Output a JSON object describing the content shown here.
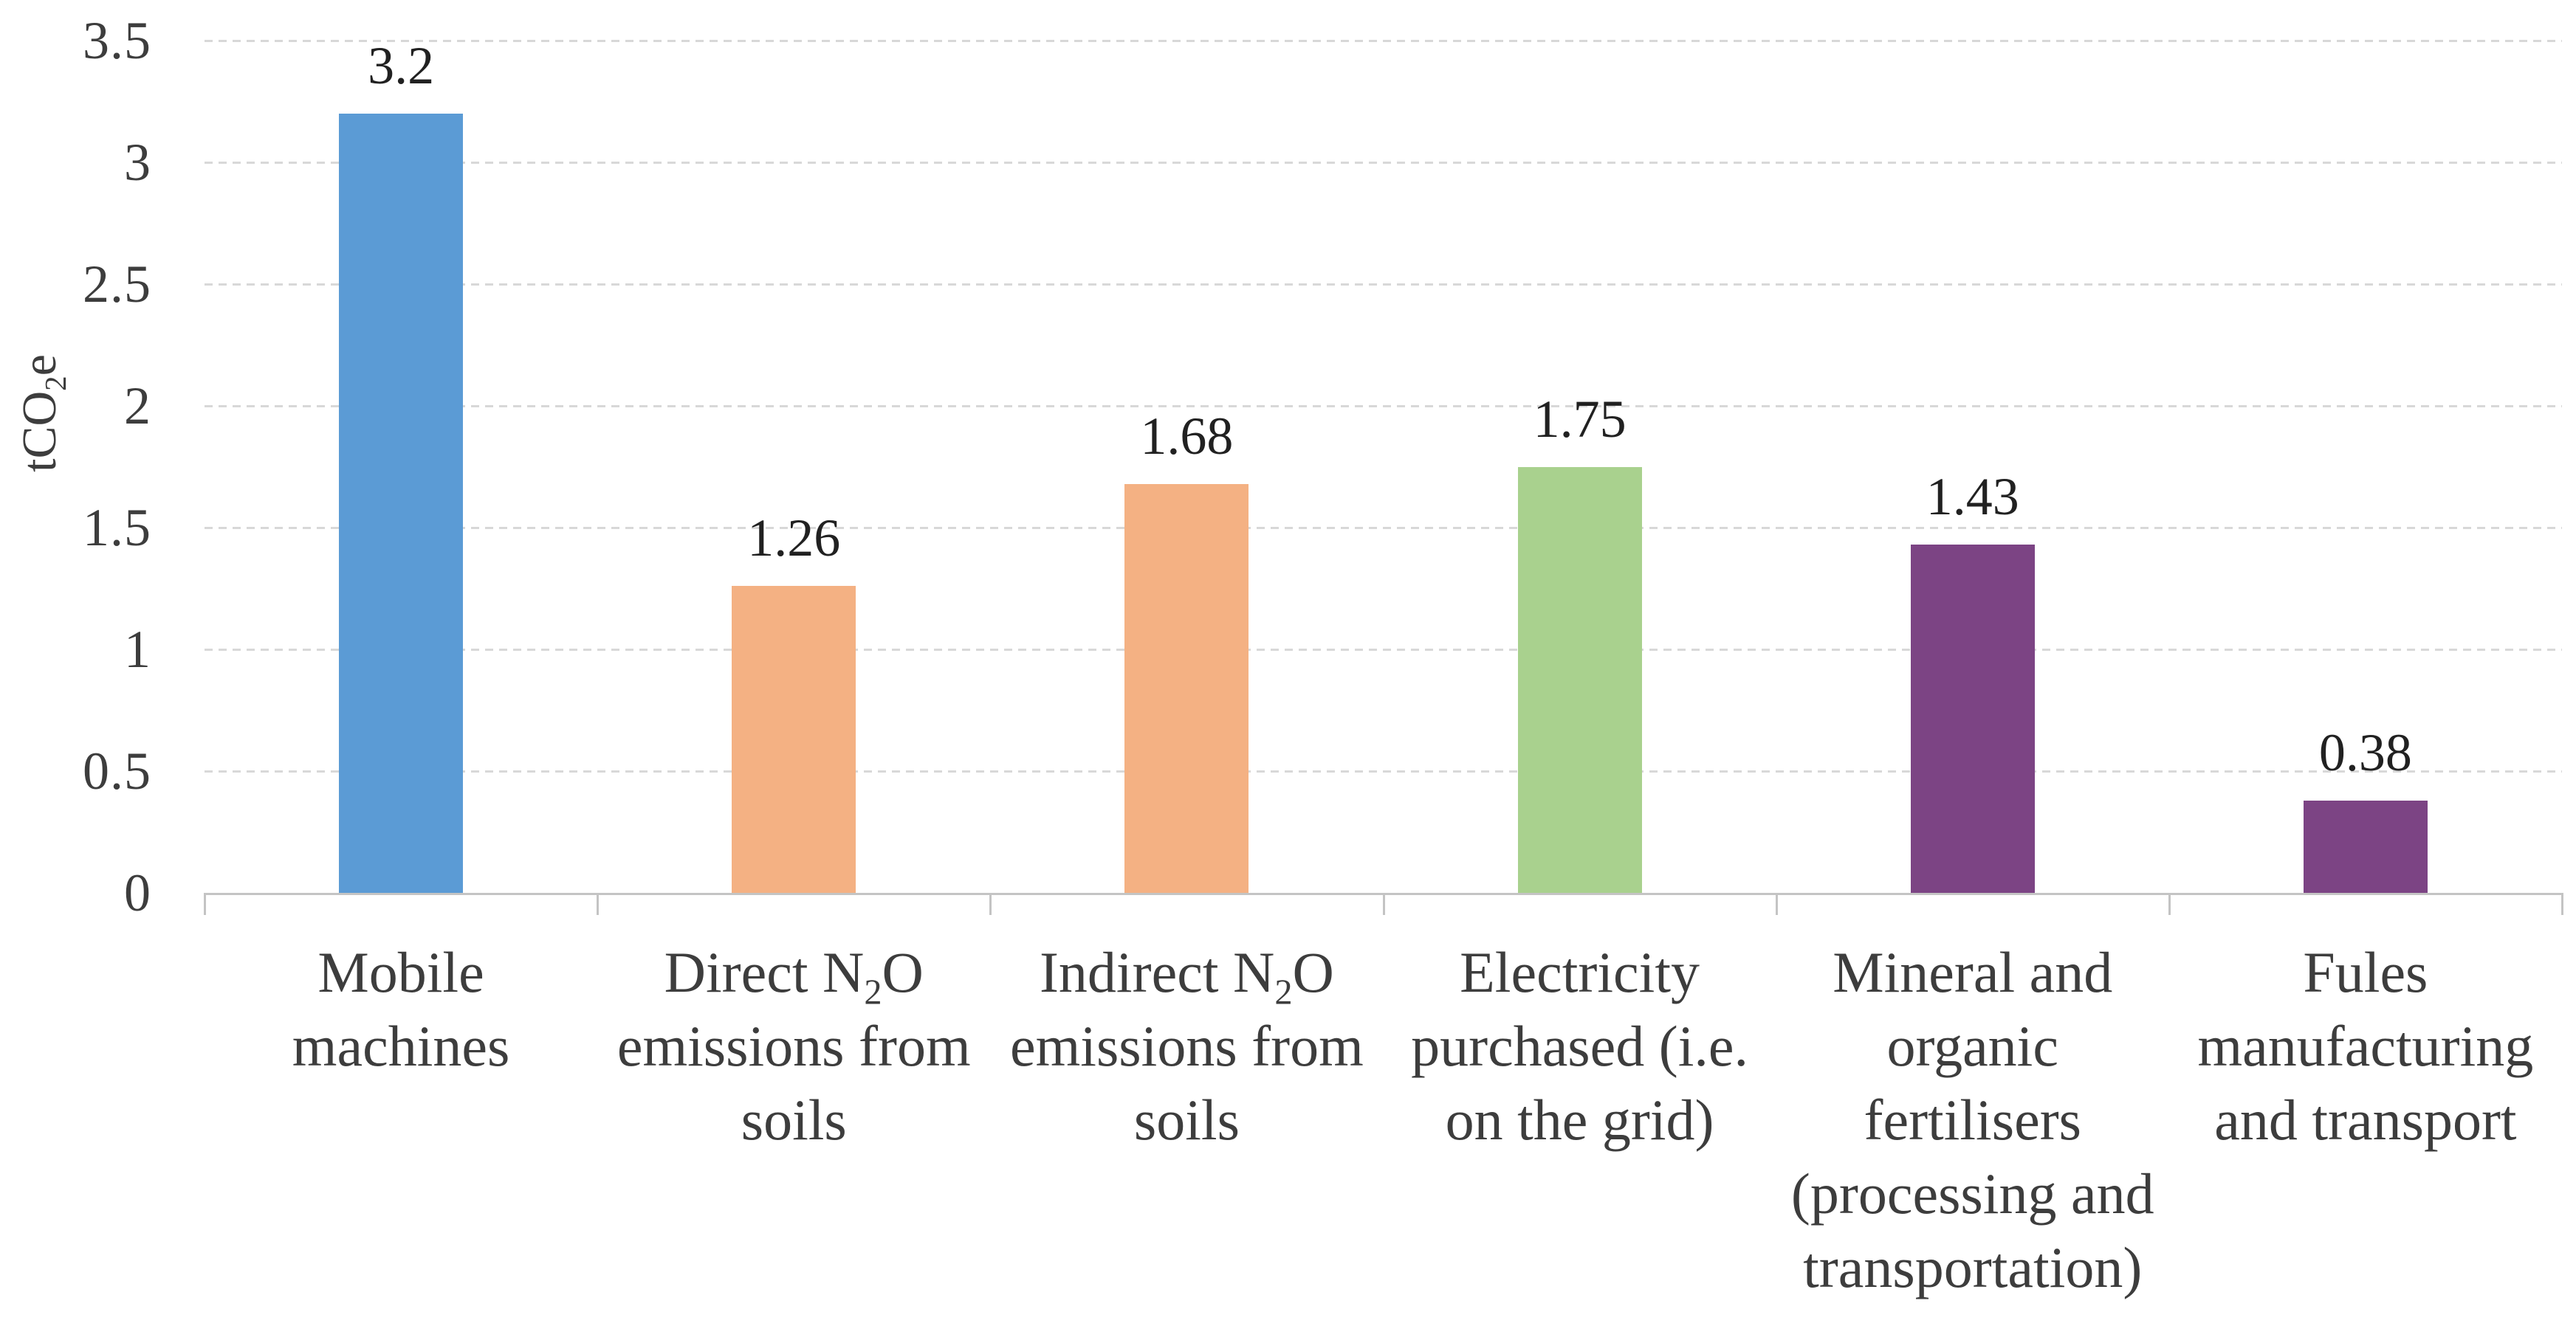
{
  "chart_data": {
    "type": "bar",
    "title": "",
    "xlabel": "",
    "ylabel": "tCO2e",
    "ylabel_segments": [
      {
        "t": "tCO"
      },
      {
        "t": "2",
        "sub": true
      },
      {
        "t": "e"
      }
    ],
    "ylim": [
      0,
      3.5
    ],
    "ytick_step": 0.5,
    "yticks": [
      "3.5",
      "3",
      "2.5",
      "2",
      "1.5",
      "1",
      "0.5",
      "0"
    ],
    "grid": "horizontal-dashed",
    "legend": "none",
    "categories": [
      "Mobile machines",
      "Direct N2O emissions from soils",
      "Indirect N2O emissions from soils",
      "Electricity purchased (i.e. on the grid)",
      "Mineral and organic fertilisers (processing and transportation)",
      "Fules manufacturing and transport"
    ],
    "category_segments": [
      [
        {
          "t": "Mobile machines"
        }
      ],
      [
        {
          "t": "Direct N"
        },
        {
          "t": "2",
          "sub": true
        },
        {
          "t": "O emissions from soils"
        }
      ],
      [
        {
          "t": "Indirect N"
        },
        {
          "t": "2",
          "sub": true
        },
        {
          "t": "O emissions from soils"
        }
      ],
      [
        {
          "t": "Electricity purchased (i.e. on the grid)"
        }
      ],
      [
        {
          "t": "Mineral and organic fertilisers (processing and transportation)"
        }
      ],
      [
        {
          "t": "Fules manufacturing and transport"
        }
      ]
    ],
    "values": [
      3.2,
      1.26,
      1.68,
      1.75,
      1.43,
      0.38
    ],
    "data_labels": [
      "3.2",
      "1.26",
      "1.68",
      "1.75",
      "1.43",
      "0.38"
    ],
    "bar_colors": [
      "#5b9bd5",
      "#f4b183",
      "#f4b183",
      "#a9d18e",
      "#7c4484",
      "#7c4484"
    ]
  },
  "colors": {
    "gridline": "#d8d8d8",
    "axis_line": "#c4c4c4",
    "tick_text": "#3d3d3d",
    "value_label_text": "#212121",
    "background": "#ffffff"
  }
}
